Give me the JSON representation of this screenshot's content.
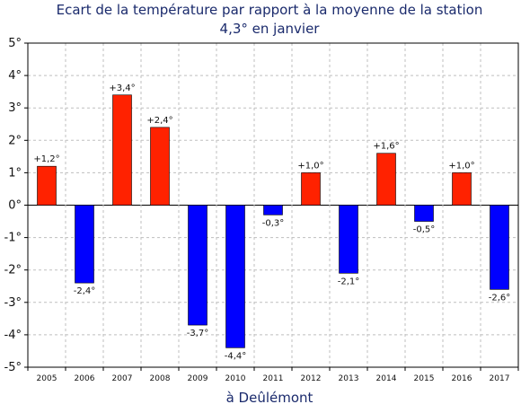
{
  "chart_data": {
    "type": "bar",
    "title": [
      "Ecart de la température par rapport à la moyenne de la station",
      "4,3° en janvier"
    ],
    "xlabel": "à Deûlémont",
    "ylabel": "",
    "ylim": [
      -5,
      5
    ],
    "y_ticks": [
      5,
      4,
      3,
      2,
      1,
      0,
      -1,
      -2,
      -3,
      -4,
      -5
    ],
    "y_tick_labels": [
      "5°",
      "4°",
      "3°",
      "2°",
      "1°",
      "0°",
      "-1°",
      "-2°",
      "-3°",
      "-4°",
      "-5°"
    ],
    "grid": true,
    "categories": [
      "2005",
      "2006",
      "2007",
      "2008",
      "2009",
      "2010",
      "2011",
      "2012",
      "2013",
      "2014",
      "2015",
      "2016",
      "2017"
    ],
    "values": [
      1.2,
      -2.4,
      3.4,
      2.4,
      -3.7,
      -4.4,
      -0.3,
      1.0,
      -2.1,
      1.6,
      -0.5,
      1.0,
      -2.6
    ],
    "data_labels": [
      "+1,2°",
      "-2,4°",
      "+3,4°",
      "+2,4°",
      "-3,7°",
      "-4,4°",
      "-0,3°",
      "+1,0°",
      "-2,1°",
      "+1,6°",
      "-0,5°",
      "+1,0°",
      "-2,6°"
    ],
    "colors": {
      "positive": "#ff2200",
      "negative": "#0000ff",
      "grid": "#bfbfbf"
    }
  }
}
